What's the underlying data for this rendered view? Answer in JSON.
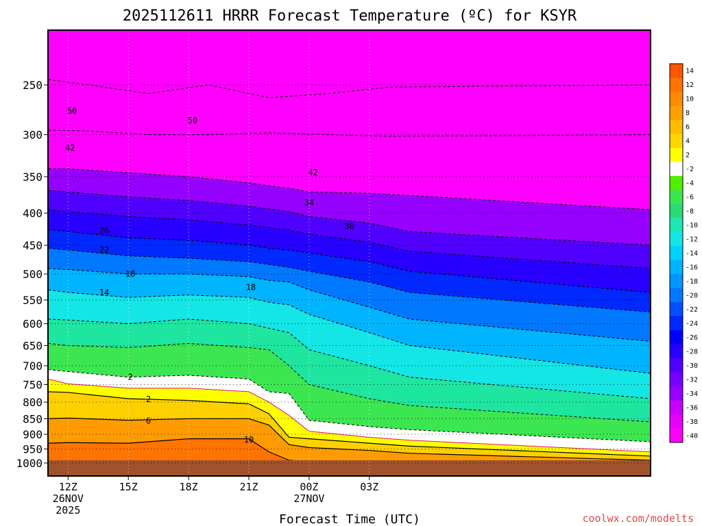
{
  "chart_data": {
    "type": "time-height contour",
    "title": "2025112611 HRRR Forecast Temperature (ºC) for KSYR",
    "xlabel": "Forecast Time (UTC)",
    "ylabel": "",
    "credit": "coolwx.com/modelts",
    "y_axis": {
      "scale": "log-pressure",
      "range_hPa": [
        1000,
        200
      ],
      "ticks": [
        "250",
        "300",
        "350",
        "400",
        "450",
        "500",
        "550",
        "600",
        "650",
        "700",
        "750",
        "800",
        "850",
        "900",
        "950",
        "1000"
      ]
    },
    "x_axis": {
      "range_hours": [
        11,
        41
      ],
      "ticks": [
        {
          "hour": 12,
          "line1": "12Z",
          "line2": "26NOV",
          "line3": "2025"
        },
        {
          "hour": 15,
          "line1": "15Z",
          "line2": "",
          "line3": ""
        },
        {
          "hour": 18,
          "line1": "18Z",
          "line2": "",
          "line3": ""
        },
        {
          "hour": 21,
          "line1": "21Z",
          "line2": "",
          "line3": ""
        },
        {
          "hour": 24,
          "line1": "00Z",
          "line2": "27NOV",
          "line3": ""
        },
        {
          "hour": 27,
          "line1": "03Z",
          "line2": "",
          "line3": ""
        }
      ]
    },
    "colorbar": {
      "labels": [
        "14",
        "12",
        "10",
        "8",
        "6",
        "4",
        "2",
        "-2",
        "-4",
        "-6",
        "-8",
        "-10",
        "-12",
        "-14",
        "-16",
        "-18",
        "-20",
        "-22",
        "-24",
        "-26",
        "-28",
        "-30",
        "-32",
        "-34",
        "-36",
        "-38",
        "-40"
      ],
      "colors": [
        "#ff5500",
        "#ff7300",
        "#ff8a00",
        "#ffa000",
        "#ffbb00",
        "#ffd600",
        "#ffff00",
        "#ffffff",
        "#50f000",
        "#3ce650",
        "#2adc78",
        "#1ee6b4",
        "#14e6e6",
        "#00d2ff",
        "#00b4ff",
        "#0096ff",
        "#0078ff",
        "#0050ff",
        "#0028ff",
        "#0000ff",
        "#2800ff",
        "#5000ff",
        "#7800ff",
        "#9600ff",
        "#c800ff",
        "#e600ff",
        "#ff00ff"
      ]
    },
    "ground_color": "#a0522d",
    "isotherms_hPa_by_hour": {
      "hours": [
        11,
        12,
        15,
        18,
        21,
        22,
        23,
        24,
        27,
        29,
        41
      ],
      "temps_C": [
        {
          "t": 10,
          "p": [
            930,
            928,
            930,
            915,
            915,
            960,
            990,
            995,
            995,
            998,
            1000
          ]
        },
        {
          "t": 6,
          "p": [
            850,
            848,
            855,
            850,
            850,
            870,
            935,
            945,
            955,
            965,
            990
          ]
        },
        {
          "t": 2,
          "p": [
            770,
            772,
            790,
            795,
            805,
            835,
            910,
            915,
            930,
            940,
            975
          ]
        },
        {
          "t": 0,
          "p": [
            735,
            748,
            760,
            760,
            770,
            800,
            840,
            890,
            910,
            920,
            960
          ]
        },
        {
          "t": -2,
          "p": [
            710,
            715,
            730,
            725,
            735,
            770,
            775,
            855,
            875,
            885,
            925
          ]
        },
        {
          "t": -6,
          "p": [
            645,
            650,
            655,
            645,
            655,
            660,
            700,
            750,
            790,
            810,
            860
          ]
        },
        {
          "t": -10,
          "p": [
            590,
            592,
            600,
            590,
            600,
            610,
            620,
            660,
            700,
            730,
            790
          ]
        },
        {
          "t": -14,
          "p": [
            530,
            535,
            545,
            540,
            545,
            555,
            560,
            580,
            620,
            650,
            720
          ]
        },
        {
          "t": -18,
          "p": [
            490,
            492,
            500,
            500,
            505,
            512,
            515,
            530,
            565,
            590,
            640
          ]
        },
        {
          "t": -22,
          "p": [
            455,
            458,
            468,
            472,
            478,
            483,
            488,
            495,
            515,
            535,
            575
          ]
        },
        {
          "t": -26,
          "p": [
            425,
            428,
            438,
            442,
            450,
            455,
            458,
            463,
            478,
            495,
            535
          ]
        },
        {
          "t": -30,
          "p": [
            395,
            398,
            405,
            410,
            418,
            422,
            426,
            432,
            445,
            460,
            490
          ]
        },
        {
          "t": -34,
          "p": [
            368,
            370,
            377,
            382,
            390,
            394,
            398,
            405,
            415,
            428,
            450
          ]
        },
        {
          "t": -38,
          "p": [
            340,
            340,
            345,
            350,
            358,
            362,
            365,
            370,
            372,
            375,
            395
          ]
        }
      ]
    },
    "contour_labels": [
      {
        "text": "50",
        "hour": 12.2,
        "p": 275
      },
      {
        "text": "50",
        "hour": 18.2,
        "p": 285
      },
      {
        "text": "42",
        "hour": 12.1,
        "p": 315
      },
      {
        "text": "42",
        "hour": 24.2,
        "p": 345
      },
      {
        "text": "34",
        "hour": 24.0,
        "p": 385
      },
      {
        "text": "30",
        "hour": 26.0,
        "p": 420
      },
      {
        "text": "26",
        "hour": 13.8,
        "p": 427
      },
      {
        "text": "22",
        "hour": 13.8,
        "p": 458
      },
      {
        "text": "18",
        "hour": 15.1,
        "p": 500
      },
      {
        "text": "18",
        "hour": 21.1,
        "p": 525
      },
      {
        "text": "14",
        "hour": 13.8,
        "p": 535
      },
      {
        "text": "2",
        "hour": 15.1,
        "p": 730
      },
      {
        "text": "2",
        "hour": 16.0,
        "p": 792
      },
      {
        "text": "6",
        "hour": 16.0,
        "p": 857
      },
      {
        "text": "10",
        "hour": 21.0,
        "p": 918
      }
    ]
  }
}
